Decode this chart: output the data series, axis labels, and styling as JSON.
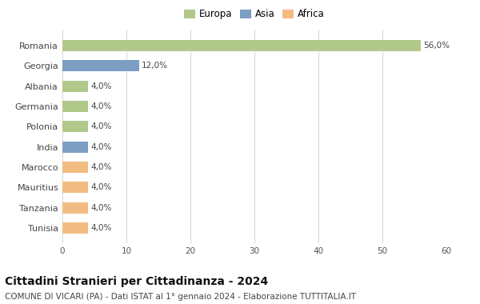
{
  "categories": [
    "Tunisia",
    "Tanzania",
    "Mauritius",
    "Marocco",
    "India",
    "Polonia",
    "Germania",
    "Albania",
    "Georgia",
    "Romania"
  ],
  "values": [
    4.0,
    4.0,
    4.0,
    4.0,
    4.0,
    4.0,
    4.0,
    4.0,
    12.0,
    56.0
  ],
  "colors": [
    "#f2bc82",
    "#f2bc82",
    "#f2bc82",
    "#f2bc82",
    "#7b9ec2",
    "#b0c98a",
    "#b0c98a",
    "#b0c98a",
    "#7b9ec2",
    "#b0c98a"
  ],
  "labels": [
    "4,0%",
    "4,0%",
    "4,0%",
    "4,0%",
    "4,0%",
    "4,0%",
    "4,0%",
    "4,0%",
    "12,0%",
    "56,0%"
  ],
  "xlim": [
    0,
    60
  ],
  "xticks": [
    0,
    10,
    20,
    30,
    40,
    50,
    60
  ],
  "legend": {
    "Europa": "#b0c98a",
    "Asia": "#7b9ec2",
    "Africa": "#f2bc82"
  },
  "title": "Cittadini Stranieri per Cittadinanza - 2024",
  "subtitle": "COMUNE DI VICARI (PA) - Dati ISTAT al 1° gennaio 2024 - Elaborazione TUTTITALIA.IT",
  "bg_color": "#ffffff",
  "plot_bg": "#ffffff",
  "title_fontsize": 10,
  "subtitle_fontsize": 7.5,
  "label_fontsize": 7.5,
  "ytick_fontsize": 8,
  "xtick_fontsize": 7.5,
  "legend_fontsize": 8.5
}
